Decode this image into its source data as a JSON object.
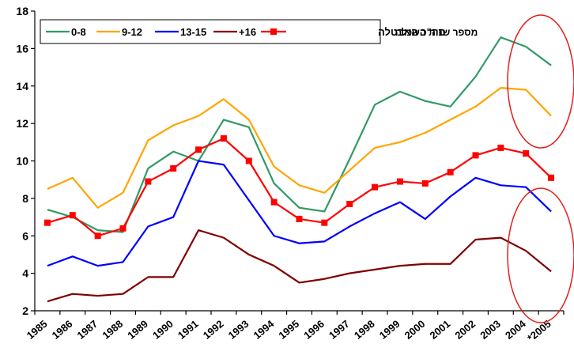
{
  "colors": {
    "background": "#ffffff",
    "axis": "#000000",
    "annotation": "#e0201a"
  },
  "chart_data": {
    "type": "line",
    "x": [
      "1985",
      "1986",
      "1987",
      "1988",
      "1989",
      "1990",
      "1991",
      "1992",
      "1993",
      "1994",
      "1995",
      "1996",
      "1997",
      "1998",
      "1999",
      "2000",
      "2001",
      "2002",
      "2003",
      "2004",
      "*2005"
    ],
    "ylim": [
      2,
      18
    ],
    "yticks": [
      2,
      4,
      6,
      8,
      10,
      12,
      14,
      16,
      18
    ],
    "grid": false,
    "legend_title": "מספר שנות השכלה",
    "legend_position": "top",
    "series": [
      {
        "name": "0-8",
        "color": "#339966",
        "marker": "none",
        "values": [
          7.4,
          7.0,
          6.3,
          6.2,
          9.6,
          10.5,
          10.0,
          12.2,
          11.8,
          8.8,
          7.5,
          7.3,
          10.1,
          13.0,
          13.7,
          13.2,
          12.9,
          14.5,
          16.6,
          16.1,
          15.1
        ]
      },
      {
        "name": "9-12",
        "color": "#ffa500",
        "marker": "none",
        "values": [
          8.5,
          9.1,
          7.5,
          8.3,
          11.1,
          11.9,
          12.4,
          13.3,
          12.2,
          9.7,
          8.7,
          8.3,
          9.5,
          10.7,
          11.0,
          11.5,
          12.2,
          12.9,
          13.9,
          13.8,
          12.4
        ]
      },
      {
        "name": "13-15",
        "color": "#0000ff",
        "marker": "none",
        "values": [
          4.4,
          4.9,
          4.4,
          4.6,
          6.5,
          7.0,
          10.0,
          9.8,
          7.9,
          6.0,
          5.6,
          5.7,
          6.5,
          7.2,
          7.8,
          6.9,
          8.1,
          9.1,
          8.7,
          8.6,
          7.3
        ]
      },
      {
        "name": "+16",
        "color": "#800000",
        "marker": "none",
        "values": [
          2.5,
          2.9,
          2.8,
          2.9,
          3.8,
          3.8,
          6.3,
          5.9,
          5.0,
          4.4,
          3.5,
          3.7,
          4.0,
          4.2,
          4.4,
          4.5,
          4.5,
          5.8,
          5.9,
          5.2,
          4.1
        ]
      },
      {
        "name": "סה\"כ האבטלה",
        "color": "#ff0000",
        "marker": "square",
        "values": [
          6.7,
          7.1,
          6.0,
          6.4,
          8.9,
          9.6,
          10.6,
          11.2,
          10.0,
          7.8,
          6.9,
          6.7,
          7.7,
          8.6,
          8.9,
          8.8,
          9.4,
          10.3,
          10.7,
          10.4,
          9.1
        ]
      }
    ]
  }
}
